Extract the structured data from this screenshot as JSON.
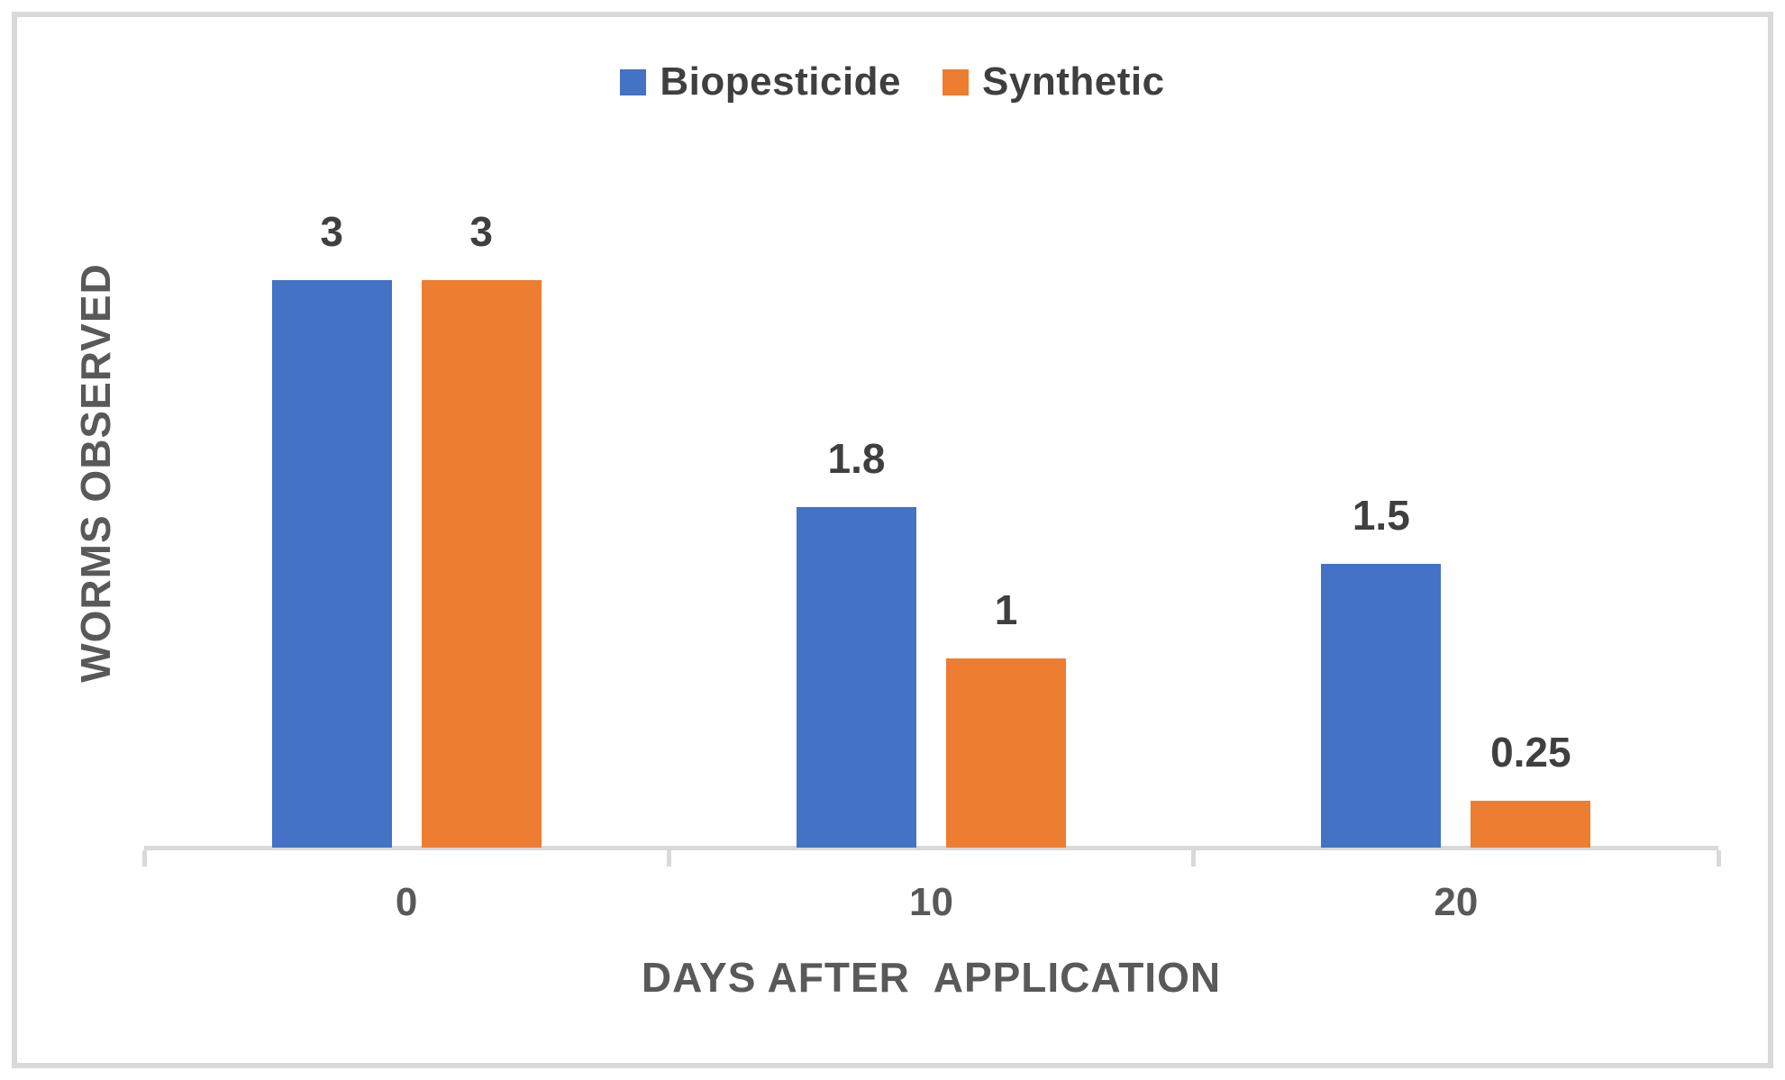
{
  "chart_data": {
    "type": "bar",
    "title": "",
    "xlabel": "DAYS AFTER  APPLICATION",
    "ylabel": "WORMS OBSERVED",
    "categories": [
      "0",
      "10",
      "20"
    ],
    "series": [
      {
        "name": "Biopesticide",
        "color": "#4472C4",
        "values": [
          3,
          1.8,
          1.5
        ]
      },
      {
        "name": "Synthetic",
        "color": "#ED7D31",
        "values": [
          3,
          1,
          0.25
        ]
      }
    ],
    "data_labels": [
      {
        "series": "Biopesticide",
        "labels": [
          "3",
          "1.8",
          "1.5"
        ]
      },
      {
        "series": "Synthetic",
        "labels": [
          "3",
          "1",
          "0.25"
        ]
      }
    ],
    "ylim": [
      0,
      3.3
    ],
    "grid": false,
    "y_axis_ticks_visible": false,
    "legend_position": "top",
    "axis_color": "#D9D9D9",
    "frame_color": "#D9D9D9",
    "axis_text_color": "#595959",
    "data_label_color": "#3F3F3F"
  }
}
